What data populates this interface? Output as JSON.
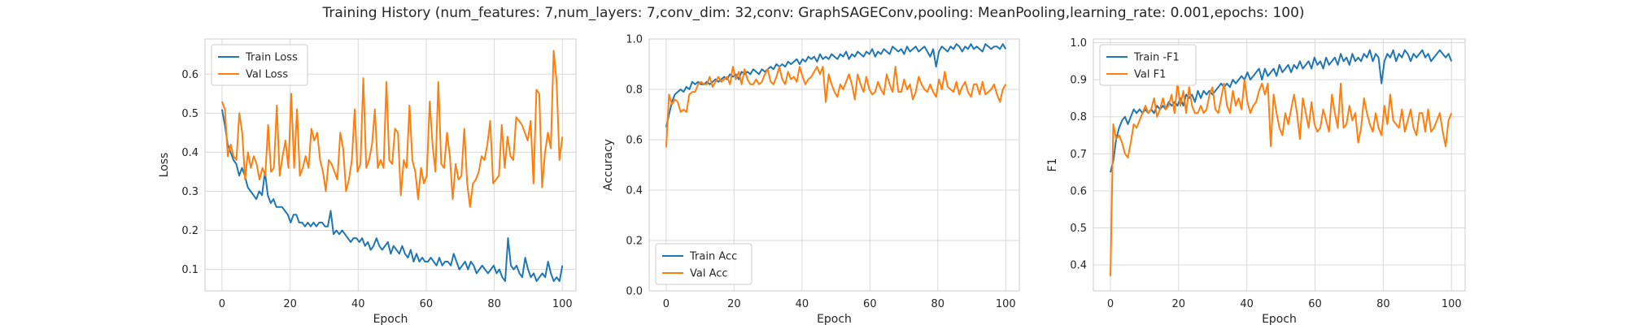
{
  "figure": {
    "title": "Training History (num_features: 7,num_layers: 7,conv_dim: 32,conv: GraphSAGEConv,pooling: MeanPooling,learning_rate: 0.001,epochs: 100)"
  },
  "colors": {
    "train": "#1f77b4",
    "val": "#ff7f0e"
  },
  "chart_data": [
    {
      "type": "line",
      "id": "loss",
      "xlabel": "Epoch",
      "ylabel": "Loss",
      "xlim": [
        -5,
        104
      ],
      "ylim": [
        0.045,
        0.69
      ],
      "xticks": [
        0,
        20,
        40,
        60,
        80,
        100
      ],
      "yticks": [
        0.1,
        0.2,
        0.3,
        0.4,
        0.5,
        0.6
      ],
      "yticks_labels": [
        "0.1",
        "0.2",
        "0.3",
        "0.4",
        "0.5",
        "0.6"
      ],
      "grid": true,
      "legend": "top-left",
      "series": [
        {
          "name": "Train Loss",
          "color": "#1f77b4",
          "values": [
            0.51,
            0.47,
            0.42,
            0.4,
            0.38,
            0.37,
            0.34,
            0.36,
            0.34,
            0.31,
            0.3,
            0.29,
            0.28,
            0.3,
            0.29,
            0.35,
            0.29,
            0.27,
            0.28,
            0.26,
            0.26,
            0.26,
            0.25,
            0.24,
            0.22,
            0.24,
            0.24,
            0.22,
            0.22,
            0.21,
            0.22,
            0.21,
            0.22,
            0.21,
            0.22,
            0.22,
            0.21,
            0.21,
            0.25,
            0.19,
            0.2,
            0.19,
            0.2,
            0.19,
            0.18,
            0.17,
            0.18,
            0.18,
            0.17,
            0.18,
            0.16,
            0.17,
            0.15,
            0.16,
            0.18,
            0.16,
            0.15,
            0.16,
            0.17,
            0.14,
            0.16,
            0.15,
            0.14,
            0.16,
            0.14,
            0.13,
            0.15,
            0.12,
            0.14,
            0.12,
            0.13,
            0.12,
            0.12,
            0.13,
            0.12,
            0.11,
            0.13,
            0.11,
            0.12,
            0.12,
            0.11,
            0.14,
            0.12,
            0.1,
            0.11,
            0.12,
            0.1,
            0.12,
            0.11,
            0.09,
            0.1,
            0.11,
            0.1,
            0.09,
            0.1,
            0.11,
            0.09,
            0.1,
            0.08,
            0.07,
            0.18,
            0.11,
            0.1,
            0.11,
            0.09,
            0.08,
            0.13,
            0.1,
            0.08,
            0.09,
            0.07,
            0.08,
            0.09,
            0.08,
            0.12,
            0.09,
            0.07,
            0.08,
            0.07,
            0.11
          ]
        },
        {
          "name": "Val Loss",
          "color": "#ff7f0e",
          "values": [
            0.53,
            0.51,
            0.39,
            0.42,
            0.39,
            0.38,
            0.5,
            0.45,
            0.33,
            0.4,
            0.36,
            0.39,
            0.37,
            0.33,
            0.36,
            0.34,
            0.47,
            0.35,
            0.36,
            0.52,
            0.34,
            0.39,
            0.43,
            0.36,
            0.55,
            0.36,
            0.51,
            0.34,
            0.36,
            0.39,
            0.36,
            0.46,
            0.43,
            0.45,
            0.38,
            0.35,
            0.3,
            0.38,
            0.37,
            0.35,
            0.33,
            0.45,
            0.41,
            0.3,
            0.33,
            0.38,
            0.51,
            0.35,
            0.37,
            0.59,
            0.36,
            0.38,
            0.42,
            0.51,
            0.36,
            0.38,
            0.36,
            0.58,
            0.38,
            0.37,
            0.46,
            0.45,
            0.29,
            0.38,
            0.36,
            0.52,
            0.38,
            0.35,
            0.28,
            0.36,
            0.32,
            0.34,
            0.53,
            0.42,
            0.35,
            0.58,
            0.37,
            0.36,
            0.45,
            0.39,
            0.28,
            0.37,
            0.33,
            0.34,
            0.46,
            0.32,
            0.26,
            0.32,
            0.33,
            0.35,
            0.39,
            0.38,
            0.42,
            0.48,
            0.32,
            0.33,
            0.34,
            0.47,
            0.36,
            0.44,
            0.39,
            0.38,
            0.49,
            0.48,
            0.47,
            0.45,
            0.43,
            0.48,
            0.32,
            0.56,
            0.55,
            0.31,
            0.4,
            0.45,
            0.41,
            0.66,
            0.58,
            0.38,
            0.44
          ]
        }
      ]
    },
    {
      "type": "line",
      "id": "accuracy",
      "xlabel": "Epoch",
      "ylabel": "Accuracy",
      "xlim": [
        -5,
        104
      ],
      "ylim": [
        0.0,
        1.0
      ],
      "xticks": [
        0,
        20,
        40,
        60,
        80,
        100
      ],
      "yticks": [
        0.0,
        0.2,
        0.4,
        0.6,
        0.8,
        1.0
      ],
      "yticks_labels": [
        "0.0",
        "0.2",
        "0.4",
        "0.6",
        "0.8",
        "1.0"
      ],
      "grid": true,
      "legend": "bottom-left",
      "series": [
        {
          "name": "Train Acc",
          "color": "#1f77b4",
          "values": [
            0.65,
            0.7,
            0.75,
            0.78,
            0.79,
            0.8,
            0.79,
            0.81,
            0.8,
            0.83,
            0.82,
            0.83,
            0.82,
            0.82,
            0.83,
            0.82,
            0.83,
            0.84,
            0.83,
            0.84,
            0.85,
            0.84,
            0.86,
            0.85,
            0.86,
            0.84,
            0.87,
            0.86,
            0.87,
            0.86,
            0.88,
            0.87,
            0.86,
            0.88,
            0.87,
            0.88,
            0.89,
            0.88,
            0.9,
            0.89,
            0.9,
            0.89,
            0.91,
            0.9,
            0.91,
            0.92,
            0.9,
            0.92,
            0.91,
            0.93,
            0.92,
            0.93,
            0.91,
            0.94,
            0.92,
            0.93,
            0.92,
            0.94,
            0.93,
            0.92,
            0.94,
            0.93,
            0.95,
            0.92,
            0.94,
            0.93,
            0.95,
            0.94,
            0.93,
            0.95,
            0.94,
            0.96,
            0.93,
            0.95,
            0.94,
            0.96,
            0.95,
            0.94,
            0.97,
            0.96,
            0.95,
            0.96,
            0.94,
            0.97,
            0.95,
            0.96,
            0.97,
            0.95,
            0.96,
            0.97,
            0.95,
            0.93,
            0.96,
            0.89,
            0.95,
            0.97,
            0.96,
            0.95,
            0.97,
            0.96,
            0.98,
            0.97,
            0.95,
            0.97,
            0.96,
            0.98,
            0.96,
            0.97,
            0.96,
            0.95,
            0.98,
            0.97,
            0.96,
            0.97,
            0.97,
            0.96,
            0.98,
            0.96
          ]
        },
        {
          "name": "Val Acc",
          "color": "#ff7f0e",
          "values": [
            0.57,
            0.78,
            0.74,
            0.76,
            0.75,
            0.71,
            0.72,
            0.71,
            0.78,
            0.79,
            0.79,
            0.82,
            0.83,
            0.82,
            0.82,
            0.85,
            0.81,
            0.83,
            0.85,
            0.83,
            0.84,
            0.85,
            0.82,
            0.89,
            0.84,
            0.87,
            0.82,
            0.88,
            0.84,
            0.82,
            0.82,
            0.84,
            0.82,
            0.83,
            0.86,
            0.88,
            0.83,
            0.82,
            0.85,
            0.89,
            0.84,
            0.82,
            0.87,
            0.84,
            0.85,
            0.83,
            0.89,
            0.85,
            0.82,
            0.84,
            0.85,
            0.87,
            0.89,
            0.86,
            0.89,
            0.75,
            0.86,
            0.82,
            0.79,
            0.77,
            0.82,
            0.8,
            0.83,
            0.86,
            0.82,
            0.76,
            0.86,
            0.82,
            0.79,
            0.85,
            0.8,
            0.78,
            0.79,
            0.83,
            0.8,
            0.78,
            0.86,
            0.82,
            0.79,
            0.89,
            0.79,
            0.79,
            0.84,
            0.8,
            0.82,
            0.76,
            0.79,
            0.85,
            0.82,
            0.8,
            0.79,
            0.82,
            0.79,
            0.77,
            0.84,
            0.8,
            0.87,
            0.81,
            0.8,
            0.79,
            0.83,
            0.78,
            0.81,
            0.83,
            0.79,
            0.77,
            0.82,
            0.82,
            0.78,
            0.83,
            0.78,
            0.79,
            0.8,
            0.82,
            0.78,
            0.75,
            0.8,
            0.82
          ]
        }
      ]
    },
    {
      "type": "line",
      "id": "f1",
      "xlabel": "Epoch",
      "ylabel": "F1",
      "xlim": [
        -5,
        104
      ],
      "ylim": [
        0.33,
        1.01
      ],
      "xticks": [
        0,
        20,
        40,
        60,
        80,
        100
      ],
      "yticks": [
        0.4,
        0.5,
        0.6,
        0.7,
        0.8,
        0.9,
        1.0
      ],
      "yticks_labels": [
        "0.4",
        "0.5",
        "0.6",
        "0.7",
        "0.8",
        "0.9",
        "1.0"
      ],
      "grid": true,
      "legend": "top-left",
      "series": [
        {
          "name": "Train -F1",
          "color": "#1f77b4",
          "values": [
            0.65,
            0.68,
            0.74,
            0.77,
            0.79,
            0.8,
            0.78,
            0.8,
            0.82,
            0.81,
            0.82,
            0.81,
            0.82,
            0.81,
            0.82,
            0.81,
            0.83,
            0.82,
            0.83,
            0.82,
            0.84,
            0.83,
            0.84,
            0.83,
            0.85,
            0.83,
            0.86,
            0.85,
            0.86,
            0.84,
            0.87,
            0.85,
            0.87,
            0.86,
            0.87,
            0.86,
            0.87,
            0.88,
            0.89,
            0.88,
            0.89,
            0.88,
            0.9,
            0.89,
            0.9,
            0.91,
            0.9,
            0.92,
            0.9,
            0.91,
            0.92,
            0.93,
            0.9,
            0.93,
            0.91,
            0.92,
            0.93,
            0.91,
            0.94,
            0.92,
            0.93,
            0.94,
            0.92,
            0.94,
            0.93,
            0.95,
            0.93,
            0.94,
            0.95,
            0.93,
            0.96,
            0.94,
            0.95,
            0.93,
            0.96,
            0.94,
            0.95,
            0.96,
            0.94,
            0.97,
            0.95,
            0.96,
            0.94,
            0.97,
            0.95,
            0.96,
            0.95,
            0.97,
            0.96,
            0.98,
            0.95,
            0.97,
            0.96,
            0.89,
            0.95,
            0.97,
            0.96,
            0.98,
            0.95,
            0.97,
            0.96,
            0.98,
            0.97,
            0.95,
            0.97,
            0.96,
            0.97,
            0.98,
            0.96,
            0.97,
            0.95,
            0.96,
            0.97,
            0.98,
            0.97,
            0.96,
            0.97,
            0.95
          ]
        },
        {
          "name": "Val F1",
          "color": "#ff7f0e",
          "values": [
            0.37,
            0.78,
            0.74,
            0.75,
            0.73,
            0.7,
            0.69,
            0.73,
            0.78,
            0.77,
            0.79,
            0.81,
            0.83,
            0.81,
            0.82,
            0.85,
            0.8,
            0.82,
            0.85,
            0.82,
            0.83,
            0.86,
            0.81,
            0.89,
            0.83,
            0.87,
            0.81,
            0.88,
            0.83,
            0.81,
            0.81,
            0.83,
            0.81,
            0.82,
            0.86,
            0.88,
            0.82,
            0.81,
            0.85,
            0.89,
            0.83,
            0.81,
            0.87,
            0.83,
            0.85,
            0.82,
            0.9,
            0.84,
            0.81,
            0.83,
            0.84,
            0.87,
            0.89,
            0.86,
            0.89,
            0.72,
            0.86,
            0.81,
            0.77,
            0.75,
            0.81,
            0.78,
            0.82,
            0.86,
            0.81,
            0.74,
            0.85,
            0.81,
            0.77,
            0.84,
            0.78,
            0.76,
            0.77,
            0.82,
            0.79,
            0.76,
            0.86,
            0.81,
            0.77,
            0.89,
            0.77,
            0.78,
            0.83,
            0.79,
            0.81,
            0.73,
            0.77,
            0.85,
            0.81,
            0.78,
            0.76,
            0.81,
            0.77,
            0.75,
            0.83,
            0.78,
            0.86,
            0.79,
            0.78,
            0.77,
            0.82,
            0.76,
            0.79,
            0.82,
            0.77,
            0.75,
            0.81,
            0.81,
            0.76,
            0.82,
            0.76,
            0.77,
            0.79,
            0.81,
            0.76,
            0.72,
            0.79,
            0.81
          ]
        }
      ]
    }
  ]
}
